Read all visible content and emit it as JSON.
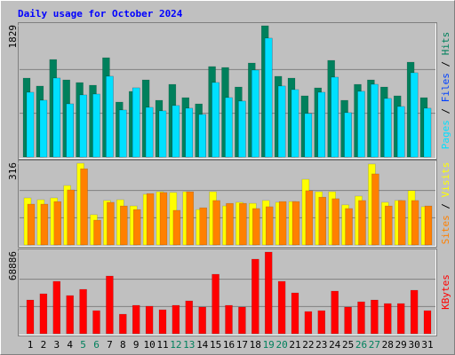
{
  "chart_data": [
    {
      "type": "bar",
      "title": "Daily usage for October 2024",
      "legend_separator": " / ",
      "ylim": [
        0,
        1829
      ],
      "yticks": [
        1829
      ],
      "series": [
        {
          "name": "Hits",
          "color": "#00805c",
          "values": [
            1100,
            989,
            1359,
            1075,
            1038,
            1001,
            1384,
            766,
            915,
            1075,
            791,
            1013,
            828,
            741,
            1261,
            1248,
            976,
            1310,
            1829,
            1125,
            1100,
            853,
            964,
            1347,
            791,
            1013,
            1075,
            976,
            853,
            1322,
            828
          ]
        },
        {
          "name": "Files",
          "color": "#0040ff",
          "values": [
            902,
            791,
            1100,
            741,
            865,
            877,
            1125,
            655,
            964,
            692,
            643,
            717,
            680,
            593,
            1038,
            828,
            779,
            1211,
            1656,
            989,
            939,
            606,
            902,
            1112,
            618,
            915,
            1013,
            816,
            704,
            1174,
            680
          ]
        },
        {
          "name": "Pages",
          "color": "#00e0ff",
          "values": [
            902,
            791,
            1100,
            741,
            865,
            877,
            1125,
            655,
            964,
            692,
            643,
            717,
            680,
            593,
            1038,
            828,
            779,
            1211,
            1656,
            989,
            939,
            606,
            902,
            1112,
            618,
            915,
            1013,
            816,
            704,
            1174,
            680
          ]
        }
      ]
    },
    {
      "type": "bar",
      "legend_separator": " / ",
      "ylim": [
        0,
        316
      ],
      "yticks": [
        316
      ],
      "series": [
        {
          "name": "Visits",
          "color": "#ffff00",
          "values": [
            182,
            175,
            182,
            230,
            316,
            117,
            172,
            175,
            151,
            196,
            206,
            203,
            206,
            137,
            206,
            151,
            165,
            161,
            172,
            165,
            168,
            254,
            206,
            206,
            155,
            189,
            313,
            165,
            172,
            210,
            148
          ]
        },
        {
          "name": "Sites",
          "color": "#ff8000",
          "values": [
            158,
            158,
            168,
            213,
            295,
            96,
            165,
            151,
            137,
            199,
            203,
            134,
            206,
            144,
            172,
            161,
            161,
            141,
            148,
            168,
            168,
            210,
            185,
            179,
            141,
            172,
            275,
            151,
            172,
            172,
            151
          ]
        }
      ]
    },
    {
      "type": "bar",
      "ylim": [
        0,
        68886
      ],
      "yticks": [
        68886
      ],
      "categories": [
        "1",
        "2",
        "3",
        "4",
        "5",
        "6",
        "7",
        "8",
        "9",
        "10",
        "11",
        "12",
        "13",
        "14",
        "15",
        "16",
        "17",
        "18",
        "19",
        "20",
        "21",
        "22",
        "23",
        "24",
        "25",
        "26",
        "27",
        "28",
        "29",
        "30",
        "31"
      ],
      "category_colors": [
        "#000000",
        "#000000",
        "#000000",
        "#000000",
        "#00805c",
        "#00805c",
        "#000000",
        "#000000",
        "#000000",
        "#000000",
        "#000000",
        "#00805c",
        "#00805c",
        "#000000",
        "#000000",
        "#000000",
        "#000000",
        "#000000",
        "#00805c",
        "#00805c",
        "#000000",
        "#000000",
        "#000000",
        "#000000",
        "#000000",
        "#00805c",
        "#00805c",
        "#000000",
        "#000000",
        "#000000",
        "#000000"
      ],
      "series": [
        {
          "name": "KBytes",
          "color": "#ff0000",
          "values": [
            28454,
            33696,
            44179,
            32198,
            37440,
            19469,
            48672,
            16474,
            23962,
            23213,
            20218,
            23962,
            27706,
            22464,
            50170,
            23962,
            22464,
            62899,
            68886,
            44179,
            34445,
            18720,
            19469,
            35942,
            22464,
            26957,
            28454,
            25459,
            25459,
            36691,
            19469
          ]
        }
      ]
    }
  ]
}
